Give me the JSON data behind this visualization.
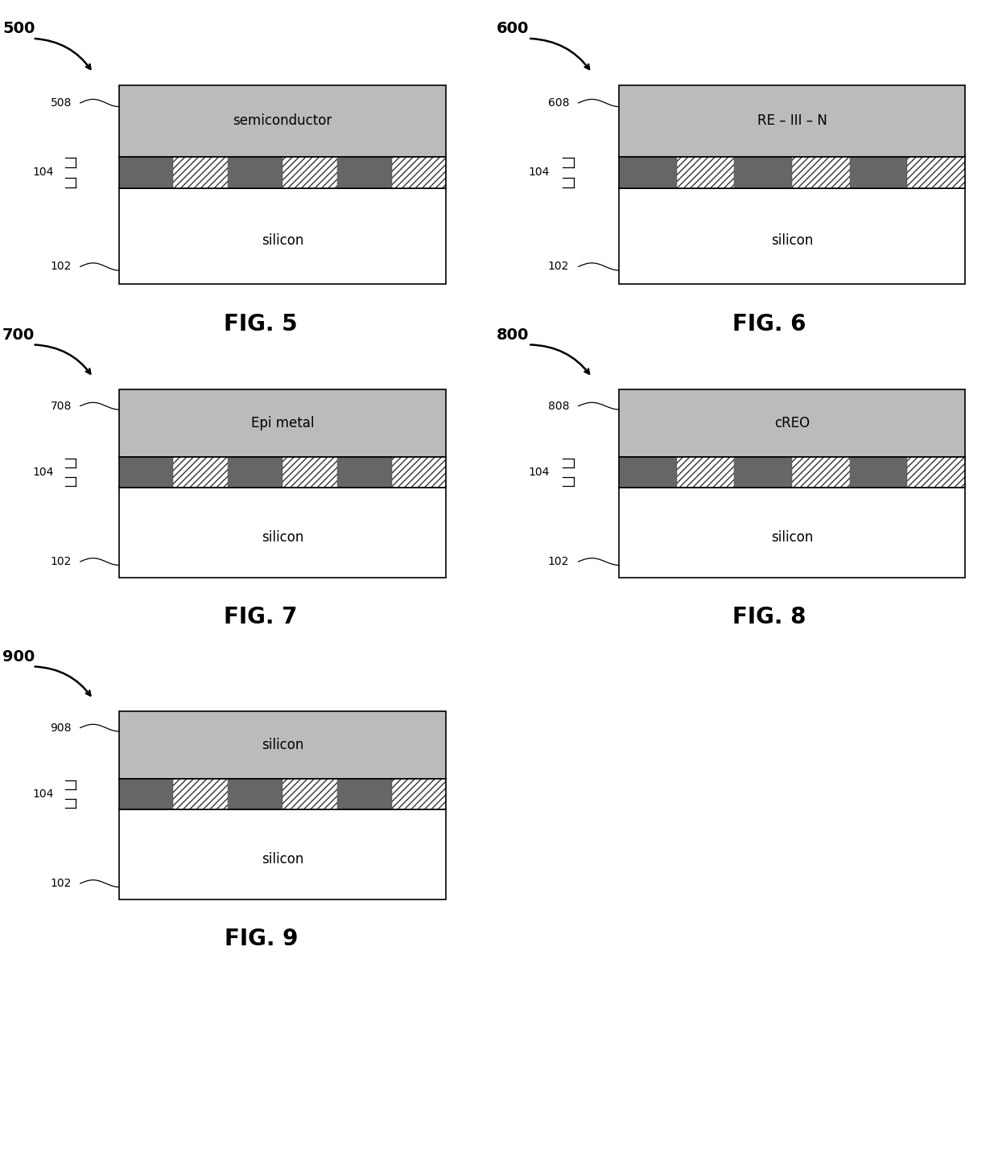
{
  "figures": [
    {
      "id": "500",
      "label": "FIG. 5",
      "col": 0,
      "row": 0,
      "top_num": "508",
      "mid_num": "104",
      "bot_num": "102",
      "top_text": "semiconductor"
    },
    {
      "id": "600",
      "label": "FIG. 6",
      "col": 1,
      "row": 0,
      "top_num": "608",
      "mid_num": "104",
      "bot_num": "102",
      "top_text": "RE – III – N"
    },
    {
      "id": "700",
      "label": "FIG. 7",
      "col": 0,
      "row": 1,
      "top_num": "708",
      "mid_num": "104",
      "bot_num": "102",
      "top_text": "Epi metal"
    },
    {
      "id": "800",
      "label": "FIG. 8",
      "col": 1,
      "row": 1,
      "top_num": "808",
      "mid_num": "104",
      "bot_num": "102",
      "top_text": "cREO"
    },
    {
      "id": "900",
      "label": "FIG. 9",
      "col": 0,
      "row": 2,
      "top_num": "908",
      "mid_num": "104",
      "bot_num": "102",
      "top_text": "silicon"
    }
  ],
  "top_layer_color": "#bbbbbb",
  "dark_seg_color": "#666666",
  "hatch_color": "#333333",
  "silicon_color": "#ffffff",
  "n_segments": 6,
  "background": "#ffffff"
}
